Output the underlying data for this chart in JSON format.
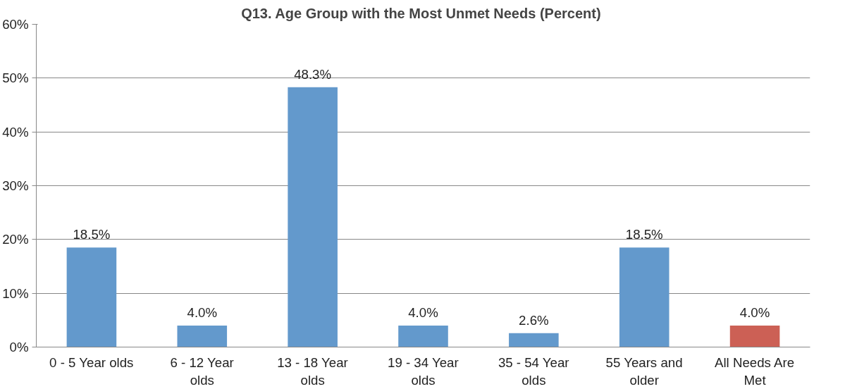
{
  "chart_data": {
    "type": "bar",
    "title": "Q13.  Age Group with the Most Unmet Needs (Percent)",
    "categories": [
      "0 - 5 Year olds",
      "6 - 12 Year olds",
      "13 - 18 Year olds",
      "19 - 34 Year olds",
      "35 - 54 Year olds",
      "55 Years and older",
      "All Needs Are Met"
    ],
    "values": [
      18.5,
      4.0,
      48.3,
      4.0,
      2.6,
      18.5,
      4.0
    ],
    "value_labels": [
      "18.5%",
      "4.0%",
      "48.3%",
      "4.0%",
      "2.6%",
      "18.5%",
      "4.0%"
    ],
    "colors": [
      "#6399cc",
      "#6399cc",
      "#6399cc",
      "#6399cc",
      "#6399cc",
      "#6399cc",
      "#cc6055"
    ],
    "ylim": [
      0,
      60
    ],
    "yticks": [
      {
        "value": 0,
        "label": "0%"
      },
      {
        "value": 10,
        "label": "10%"
      },
      {
        "value": 20,
        "label": "20%"
      },
      {
        "value": 30,
        "label": "30%"
      },
      {
        "value": 40,
        "label": "40%"
      },
      {
        "value": 50,
        "label": "50%"
      },
      {
        "value": 60,
        "label": "60%"
      }
    ],
    "grid": "y"
  }
}
